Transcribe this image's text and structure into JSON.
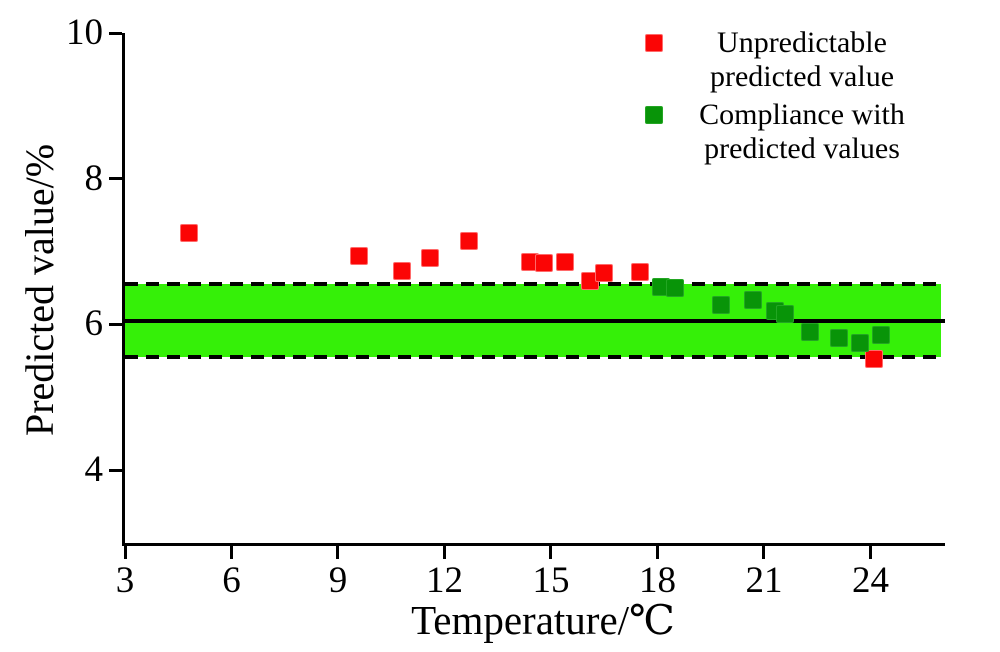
{
  "chart_data": {
    "type": "scatter",
    "title": "",
    "xlabel": "Temperature/℃",
    "ylabel": "Predicted value/%",
    "xlim": [
      3,
      26.1
    ],
    "ylim": [
      3,
      10
    ],
    "x_ticks": [
      3,
      6,
      9,
      12,
      15,
      18,
      21,
      24
    ],
    "y_ticks": [
      4,
      6,
      8,
      10
    ],
    "grid": false,
    "legend_position": "top-right",
    "band": {
      "low": 5.55,
      "high": 6.55,
      "center": 6.05,
      "color": "#35F008",
      "edge_style": "dashed-black",
      "center_style": "solid-black"
    },
    "series": [
      {
        "name": "Unpredictable predicted value",
        "marker": "square",
        "color": "#FB0505",
        "edge": "#FF6A6A",
        "points": [
          [
            4.8,
            7.26
          ],
          [
            9.6,
            6.94
          ],
          [
            10.8,
            6.74
          ],
          [
            11.6,
            6.91
          ],
          [
            12.7,
            7.14
          ],
          [
            14.4,
            6.86
          ],
          [
            14.8,
            6.85
          ],
          [
            15.4,
            6.86
          ],
          [
            16.1,
            6.6
          ],
          [
            16.5,
            6.7
          ],
          [
            17.5,
            6.72
          ],
          [
            24.1,
            5.52
          ]
        ]
      },
      {
        "name": "Compliance with predicted values",
        "marker": "square",
        "color": "#089408",
        "edge": "#23A623",
        "points": [
          [
            18.1,
            6.51
          ],
          [
            18.5,
            6.5
          ],
          [
            19.8,
            6.27
          ],
          [
            20.7,
            6.34
          ],
          [
            21.3,
            6.18
          ],
          [
            21.6,
            6.14
          ],
          [
            22.3,
            5.9
          ],
          [
            23.1,
            5.81
          ],
          [
            23.7,
            5.74
          ],
          [
            24.3,
            5.85
          ]
        ]
      }
    ]
  },
  "legend": {
    "items": [
      {
        "line1": "Unpredictable",
        "line2": "predicted value",
        "color": "#FB0505",
        "edge": "#FF6A6A"
      },
      {
        "line1": "Compliance with",
        "line2": "predicted values",
        "color": "#089408",
        "edge": "#23A623"
      }
    ]
  }
}
